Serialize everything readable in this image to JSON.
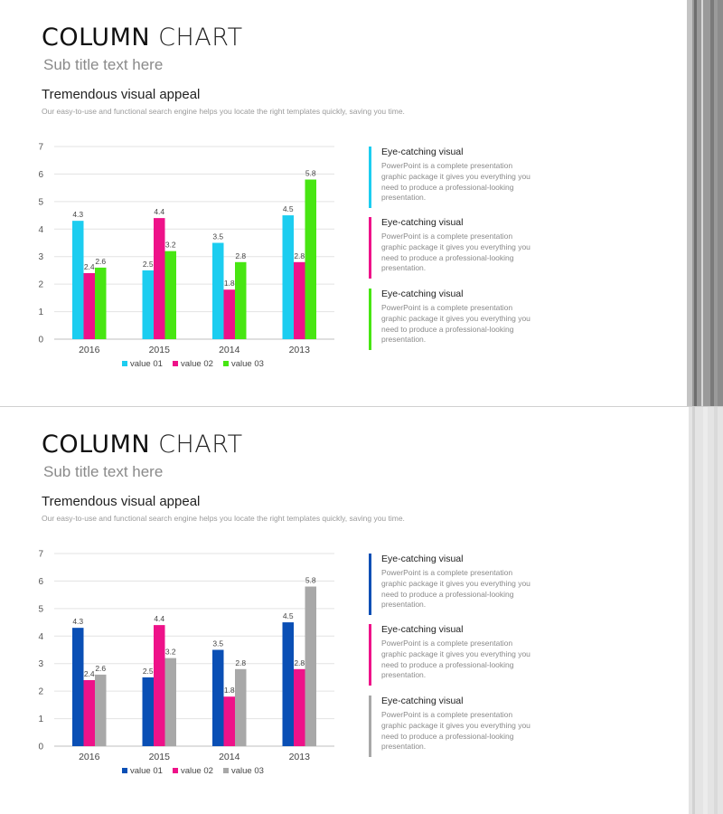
{
  "slides": [
    {
      "title_bold": "COLUMN",
      "title_light": "CHART",
      "subtitle": "Sub title text here",
      "section_heading": "Tremendous visual appeal",
      "section_text": "Our easy-to-use and functional search engine helps you locate the right templates quickly, saving you time.",
      "info": [
        {
          "heading": "Eye-catching visual",
          "text": "PowerPoint is a complete presentation graphic package it gives you everything you need to produce a professional-looking presentation.",
          "color": "#1ccdf0"
        },
        {
          "heading": "Eye-catching visual",
          "text": "PowerPoint is a complete presentation graphic package it gives you everything you need to produce a professional-looking presentation.",
          "color": "#ee1289"
        },
        {
          "heading": "Eye-catching visual",
          "text": "PowerPoint is a complete presentation graphic package it gives you everything you need to produce a professional-looking presentation.",
          "color": "#47e612"
        }
      ]
    },
    {
      "title_bold": "COLUMN",
      "title_light": "CHART",
      "subtitle": "Sub title text here",
      "section_heading": "Tremendous visual appeal",
      "section_text": "Our easy-to-use and functional search engine helps you locate the right templates quickly, saving you time.",
      "info": [
        {
          "heading": "Eye-catching visual",
          "text": "PowerPoint is a complete presentation graphic package it gives you everything you need to produce a professional-looking presentation.",
          "color": "#0a4fb5"
        },
        {
          "heading": "Eye-catching visual",
          "text": "PowerPoint is a complete presentation graphic package it gives you everything you need to produce a professional-looking presentation.",
          "color": "#ee1289"
        },
        {
          "heading": "Eye-catching visual",
          "text": "PowerPoint is a complete presentation graphic package it gives you everything you need to produce a professional-looking presentation.",
          "color": "#a8a8a8"
        }
      ]
    }
  ],
  "chart_data": [
    {
      "type": "bar",
      "categories": [
        "2016",
        "2015",
        "2014",
        "2013"
      ],
      "series": [
        {
          "name": "value 01",
          "values": [
            4.3,
            2.5,
            3.5,
            4.5
          ],
          "color": "#1ccdf0"
        },
        {
          "name": "value 02",
          "values": [
            2.4,
            4.4,
            1.8,
            2.8
          ],
          "color": "#ee1289"
        },
        {
          "name": "value 03",
          "values": [
            2.6,
            3.2,
            2.8,
            5.8
          ],
          "color": "#47e612"
        }
      ],
      "ylim": [
        0,
        7
      ],
      "yticks": [
        0,
        1,
        2,
        3,
        4,
        5,
        6,
        7
      ],
      "grid": true,
      "legend": "bottom",
      "data_labels": true
    },
    {
      "type": "bar",
      "categories": [
        "2016",
        "2015",
        "2014",
        "2013"
      ],
      "series": [
        {
          "name": "value 01",
          "values": [
            4.3,
            2.5,
            3.5,
            4.5
          ],
          "color": "#0a4fb5"
        },
        {
          "name": "value 02",
          "values": [
            2.4,
            4.4,
            1.8,
            2.8
          ],
          "color": "#ee1289"
        },
        {
          "name": "value 03",
          "values": [
            2.6,
            3.2,
            2.8,
            5.8
          ],
          "color": "#a8a8a8"
        }
      ],
      "ylim": [
        0,
        7
      ],
      "yticks": [
        0,
        1,
        2,
        3,
        4,
        5,
        6,
        7
      ],
      "grid": true,
      "legend": "bottom",
      "data_labels": true
    }
  ]
}
